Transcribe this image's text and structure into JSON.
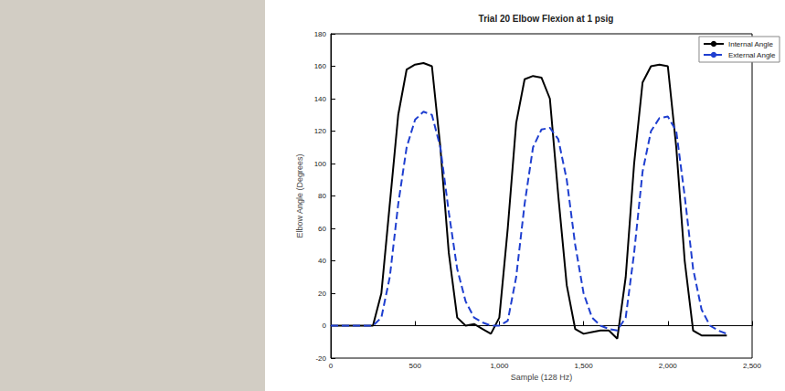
{
  "chart_data": {
    "type": "line",
    "title": "Trial 20 Elbow Flexion at 1 psig",
    "xlabel": "Sample (128 Hz)",
    "ylabel": "Elbow Angle (Degrees)",
    "x": [
      0,
      50,
      100,
      150,
      200,
      250,
      300,
      350,
      400,
      450,
      500,
      550,
      600,
      650,
      700,
      750,
      800,
      850,
      900,
      950,
      1000,
      1050,
      1100,
      1150,
      1200,
      1250,
      1300,
      1350,
      1400,
      1450,
      1500,
      1550,
      1600,
      1650,
      1700,
      1750,
      1800,
      1850,
      1900,
      1950,
      2000,
      2050,
      2100,
      2150,
      2200,
      2250,
      2300,
      2350
    ],
    "series": [
      {
        "name": "Internal Angle",
        "color": "#000000",
        "line_style": "solid",
        "values": [
          0,
          0,
          0,
          0,
          0,
          0,
          20,
          75,
          130,
          158,
          161,
          162,
          160,
          110,
          45,
          5,
          0,
          1,
          -2,
          -5,
          5,
          60,
          125,
          152,
          154,
          153,
          140,
          80,
          25,
          -2,
          -5,
          -4,
          -3,
          -3,
          -8,
          30,
          100,
          150,
          160,
          161,
          160,
          110,
          40,
          -3,
          -6,
          -6,
          -6,
          -6
        ]
      },
      {
        "name": "External Angle",
        "color": "#1f3fd0",
        "line_style": "dashed",
        "values": [
          0,
          0,
          0,
          0,
          0,
          0,
          5,
          30,
          75,
          110,
          127,
          132,
          130,
          110,
          70,
          35,
          15,
          5,
          2,
          0,
          0,
          3,
          30,
          75,
          110,
          121,
          122,
          115,
          90,
          50,
          20,
          5,
          0,
          -2,
          -3,
          5,
          45,
          95,
          120,
          128,
          129,
          120,
          80,
          35,
          10,
          0,
          -3,
          -5
        ]
      }
    ],
    "xlim": [
      0,
      2500
    ],
    "xticks": [
      0,
      500,
      1000,
      1500,
      2000,
      2500
    ],
    "ylim": [
      -20,
      180
    ],
    "yticks": [
      -20,
      0,
      20,
      40,
      60,
      80,
      100,
      120,
      140,
      160,
      180
    ],
    "grid": false,
    "legend": "upper right"
  }
}
